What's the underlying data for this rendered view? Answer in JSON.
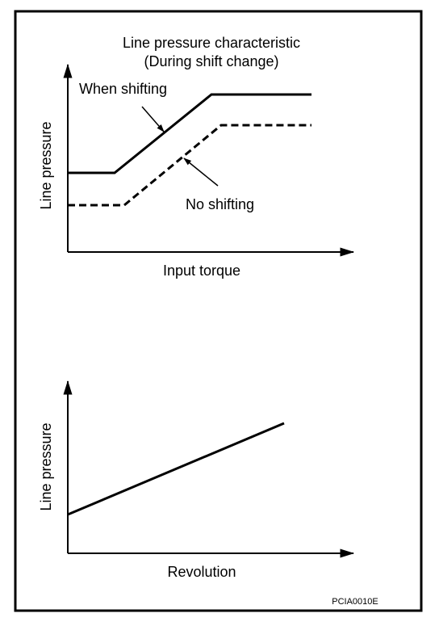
{
  "top_chart": {
    "title": [
      "Line pressure characteristic",
      "(During shift change)"
    ],
    "labels": {
      "shifting": "When shifting",
      "no_shifting": "No shifting"
    },
    "y_axis": "Line pressure",
    "x_axis": "Input torque"
  },
  "bottom_chart": {
    "y_axis": "Line pressure",
    "x_axis": "Revolution"
  },
  "figure_id": "PCIA0010E"
}
